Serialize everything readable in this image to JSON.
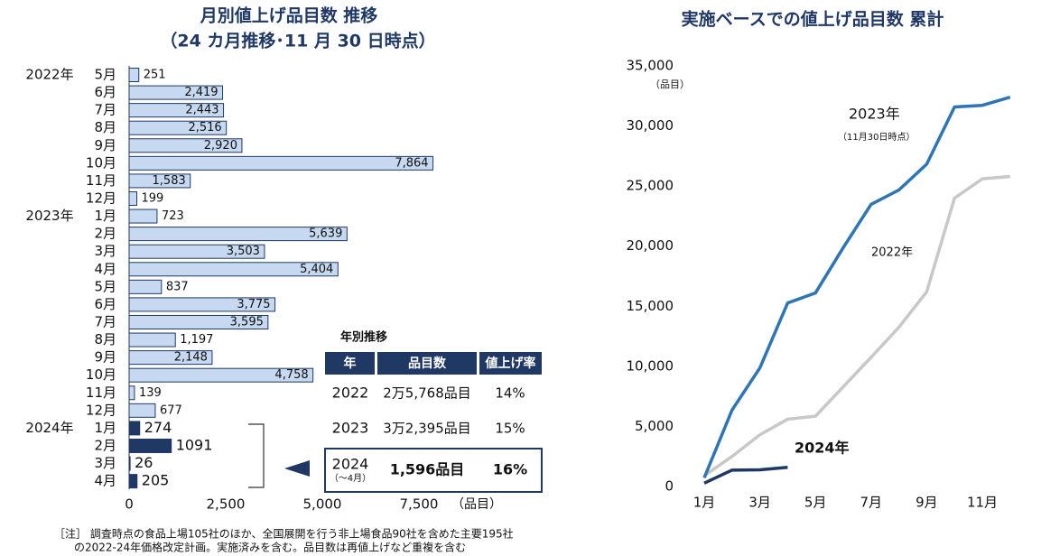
{
  "chart_data": [
    {
      "type": "bar",
      "orientation": "horizontal",
      "title": "月別値上げ品目数  推移",
      "subtitle": "（24 カ月推移･11 月 30 日時点）",
      "groups": [
        {
          "name": "2022年",
          "color": "#c6d9f0",
          "categories": [
            "5月",
            "6月",
            "7月",
            "8月",
            "9月",
            "10月",
            "11月",
            "12月"
          ],
          "values": [
            251,
            2419,
            2443,
            2516,
            2920,
            7864,
            1583,
            199
          ],
          "value_labels": [
            "251",
            "2,419",
            "2,443",
            "2,516",
            "2,920",
            "7,864",
            "1,583",
            "199"
          ]
        },
        {
          "name": "2023年",
          "color": "#c6d9f0",
          "categories": [
            "1月",
            "2月",
            "3月",
            "4月",
            "5月",
            "6月",
            "7月",
            "8月",
            "9月",
            "10月",
            "11月",
            "12月"
          ],
          "values": [
            723,
            5639,
            3503,
            5404,
            837,
            3775,
            3595,
            1197,
            2148,
            4758,
            139,
            677
          ],
          "value_labels": [
            "723",
            "5,639",
            "3,503",
            "5,404",
            "837",
            "3,775",
            "3,595",
            "1,197",
            "2,148",
            "4,758",
            "139",
            "677"
          ]
        },
        {
          "name": "2024年",
          "color": "#1f3864",
          "categories": [
            "1月",
            "2月",
            "3月",
            "4月"
          ],
          "values": [
            274,
            1091,
            26,
            205
          ]
        }
      ],
      "xlim": [
        0,
        7500
      ],
      "xticks": [
        0,
        {
          "value": 2500,
          "label": "2,500"
        },
        {
          "value": 5000,
          "label": "5,000"
        },
        {
          "value": 7500,
          "label": "7,500"
        }
      ],
      "unit": "（品目）"
    },
    {
      "type": "line",
      "title": "実施ベースでの値上げ品目数  累計",
      "categories": [
        "1月",
        null,
        "3月",
        null,
        "5月",
        null,
        "7月",
        null,
        "9月",
        null,
        "11月",
        null
      ],
      "series": [
        {
          "name": "2022年",
          "color": "#c8c8c8",
          "values": [
            900,
            2500,
            4300,
            5600,
            5850,
            8300,
            10750,
            13250,
            16200,
            24000,
            25600,
            25800
          ]
        },
        {
          "name": "2023年",
          "color": "#2e75b6",
          "note": "（11月30日時点）",
          "values": [
            723,
            6362,
            9865,
            15269,
            16106,
            19881,
            23476,
            24673,
            26821,
            31579,
            31718,
            32395
          ]
        },
        {
          "name": "2024年",
          "color": "#1f3864",
          "values": [
            274,
            1365,
            1391,
            1596,
            null,
            null,
            null,
            null,
            null,
            null,
            null,
            null
          ]
        }
      ],
      "ylim": [
        0,
        35000
      ],
      "yticks": [
        0,
        {
          "value": 5000,
          "label": "5,000"
        },
        {
          "value": 10000,
          "label": "10,000"
        },
        {
          "value": 15000,
          "label": "15,000"
        },
        {
          "value": 20000,
          "label": "20,000"
        },
        {
          "value": 25000,
          "label": "25,000"
        },
        {
          "value": 30000,
          "label": "30,000"
        },
        {
          "value": 35000,
          "label": "35,000"
        }
      ],
      "unit": "（品目）"
    }
  ],
  "table": {
    "title": "年別推移",
    "header": [
      "年",
      "品目数",
      "値上げ率"
    ],
    "rows": [
      {
        "year": "2022",
        "items": "2万5,768品目",
        "rate": "14%"
      },
      {
        "year": "2023",
        "items": "3万2,395品目",
        "rate": "15%"
      },
      {
        "year": "2024",
        "period": "（～4月）",
        "items": "1,596品目",
        "rate": "16%"
      }
    ]
  },
  "note": [
    "［注］ 調査時点の食品上場105社のほか、全国展開を行う非上場食品90社を含めた主要195社",
    "の2022-24年価格改定計画。実施済みを含む。品目数は再値上げなど重複を含む"
  ]
}
